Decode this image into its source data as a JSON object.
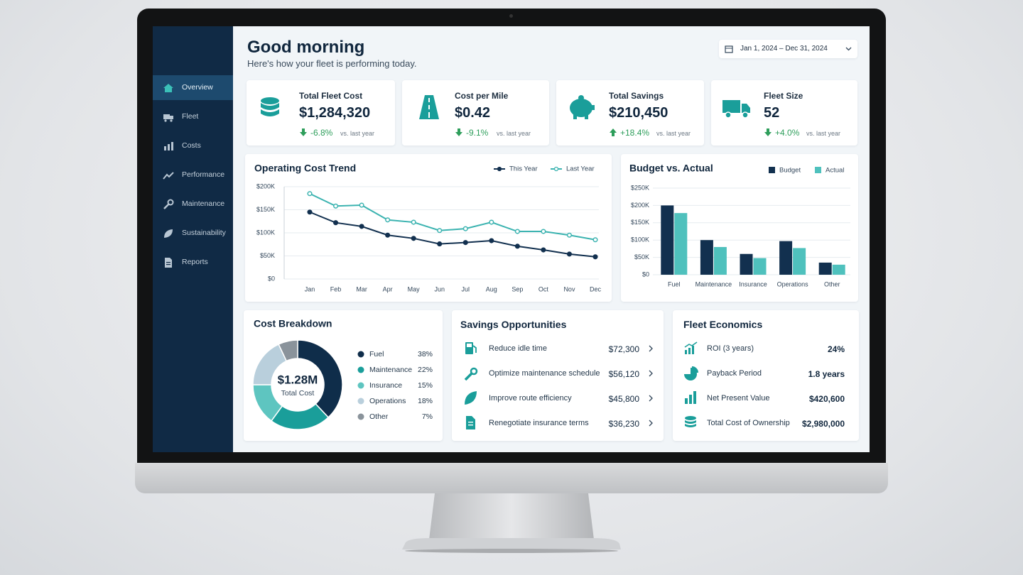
{
  "sidebar": {
    "items": [
      "Overview",
      "Fleet",
      "Costs",
      "Performance",
      "Maintenance",
      "Sustainability",
      "Reports"
    ]
  },
  "header": {
    "title": "Good morning",
    "subtitle": "Here's how your fleet is performing today.",
    "date_range": "Jan 1, 2024 – Dec 31, 2024"
  },
  "kpis": [
    {
      "label": "Total Fleet Cost",
      "value": "$1,284,320",
      "change": "-6.8%",
      "note": "vs. last year"
    },
    {
      "label": "Cost per Mile",
      "value": "$0.42",
      "change": "-9.1%",
      "note": "vs. last year"
    },
    {
      "label": "Total Savings",
      "value": "$210,450",
      "change": "+18.4%",
      "note": "vs. last year"
    },
    {
      "label": "Fleet Size",
      "value": "52",
      "change": "+4.0%",
      "note": "vs. last year"
    }
  ],
  "chart_data": [
    {
      "type": "line",
      "title": "Operating Cost Trend",
      "categories": [
        "Jan",
        "Feb",
        "Mar",
        "Apr",
        "May",
        "Jun",
        "Jul",
        "Aug",
        "Sep",
        "Oct",
        "Nov",
        "Dec"
      ],
      "series": [
        {
          "name": "This Year",
          "color": "#12304f",
          "values": [
            145000,
            122000,
            114000,
            95000,
            88000,
            76000,
            79000,
            83000,
            71000,
            63000,
            54000,
            48000
          ]
        },
        {
          "name": "Last Year",
          "color": "#3bb3b0",
          "values": [
            185000,
            158000,
            160000,
            128000,
            123000,
            105000,
            109000,
            123000,
            103000,
            103000,
            95000,
            85000
          ]
        }
      ],
      "ylim": [
        0,
        200000
      ],
      "yticks": [
        {
          "value": 0,
          "label": "$0"
        },
        {
          "value": 50000,
          "label": "$50K"
        },
        {
          "value": 100000,
          "label": "$100K"
        },
        {
          "value": 150000,
          "label": "$150K"
        },
        {
          "value": 200000,
          "label": "$200K"
        }
      ],
      "grid": true,
      "legend": "top-right"
    },
    {
      "type": "bar",
      "title": "Budget vs. Actual",
      "categories": [
        "Fuel",
        "Maintenance",
        "Insurance",
        "Operations",
        "Other"
      ],
      "series": [
        {
          "name": "Budget",
          "color": "#12304f",
          "values": [
            200000,
            100000,
            60000,
            97000,
            35000
          ]
        },
        {
          "name": "Actual",
          "color": "#4fc1bd",
          "values": [
            178000,
            80000,
            48000,
            77000,
            29000
          ]
        }
      ],
      "ylim": [
        0,
        250000
      ],
      "yticks": [
        {
          "value": 0,
          "label": "$0"
        },
        {
          "value": 50000,
          "label": "$50K"
        },
        {
          "value": 100000,
          "label": "$100K"
        },
        {
          "value": 150000,
          "label": "$150K"
        },
        {
          "value": 200000,
          "label": "$200K"
        },
        {
          "value": 250000,
          "label": "$250K"
        }
      ],
      "grid": true,
      "legend": "top-right"
    },
    {
      "type": "pie",
      "title": "Cost Breakdown",
      "donut": true,
      "center_label": "$1.28M",
      "center_sublabel": "Total Cost",
      "categories": [
        "Fuel",
        "Maintenance",
        "Insurance",
        "Operations",
        "Other"
      ],
      "values": [
        38,
        22,
        15,
        18,
        7
      ],
      "value_labels": [
        "38%",
        "22%",
        "15%",
        "18%",
        "7%"
      ],
      "colors": [
        "#0f2d4a",
        "#1a9e9a",
        "#5ec5c0",
        "#b9cfdc",
        "#8a939b"
      ],
      "legend": "right"
    }
  ],
  "savings": {
    "title": "Savings Opportunities",
    "items": [
      {
        "label": "Reduce idle time",
        "value": "$72,300"
      },
      {
        "label": "Optimize maintenance schedule",
        "value": "$56,120"
      },
      {
        "label": "Improve route efficiency",
        "value": "$45,800"
      },
      {
        "label": "Renegotiate insurance terms",
        "value": "$36,230"
      }
    ]
  },
  "economics": {
    "title": "Fleet Economics",
    "items": [
      {
        "label": "ROI (3 years)",
        "value": "24%"
      },
      {
        "label": "Payback Period",
        "value": "1.8 years"
      },
      {
        "label": "Net Present Value",
        "value": "$420,600"
      },
      {
        "label": "Total Cost of Ownership",
        "value": "$2,980,000"
      }
    ]
  }
}
